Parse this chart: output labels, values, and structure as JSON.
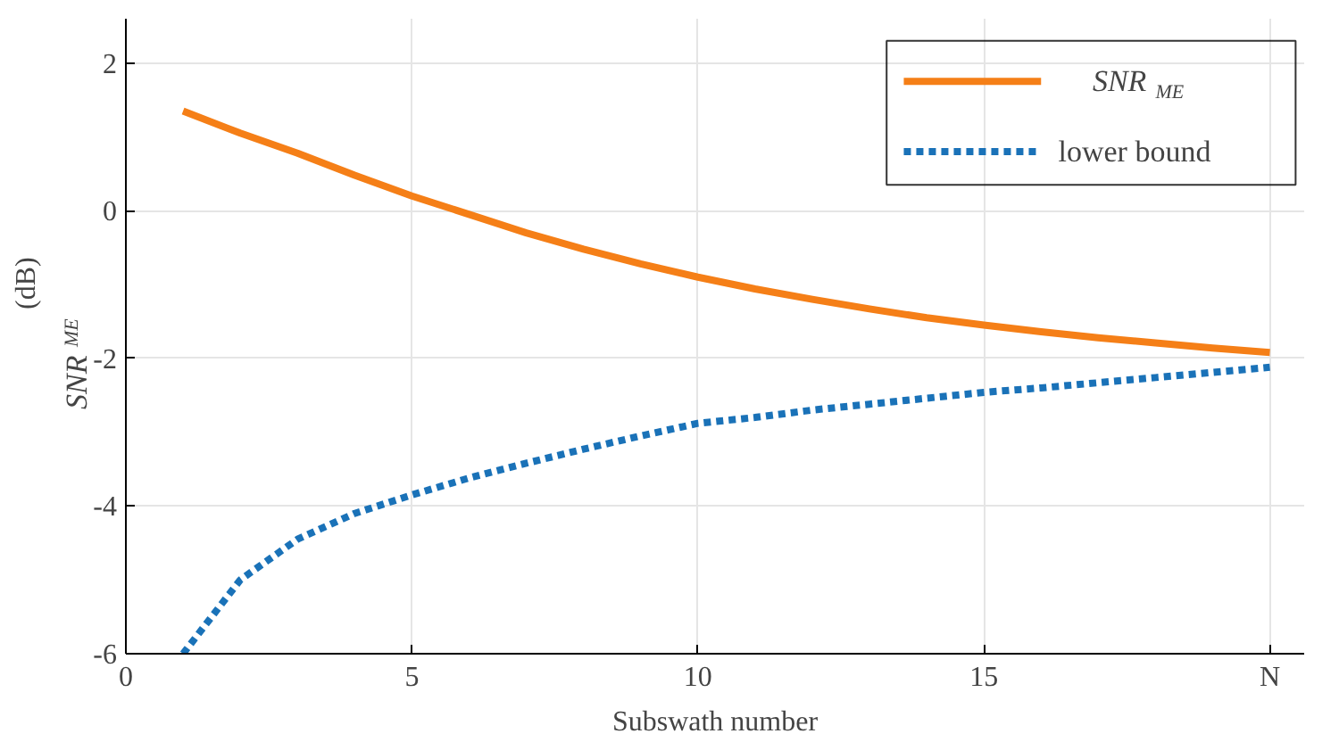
{
  "chart_data": {
    "type": "line",
    "xlabel": "Subswath number",
    "ylabel": "SNR$_{ME}$ (dB)",
    "x": [
      1,
      2,
      3,
      4,
      5,
      6,
      7,
      8,
      9,
      10,
      11,
      12,
      13,
      14,
      15,
      16,
      17,
      18,
      19,
      20
    ],
    "series": [
      {
        "name": "SNR$_{ME}$",
        "color": "#f57f17",
        "line_style": "solid",
        "values": [
          1.35,
          1.05,
          0.78,
          0.48,
          0.2,
          -0.05,
          -0.3,
          -0.52,
          -0.72,
          -0.9,
          -1.06,
          -1.2,
          -1.33,
          -1.45,
          -1.55,
          -1.64,
          -1.72,
          -1.79,
          -1.86,
          -1.92
        ]
      },
      {
        "name": "lower bound",
        "color": "#1a72b8",
        "line_style": "dashed",
        "values": [
          -6.0,
          -5.0,
          -4.45,
          -4.1,
          -3.85,
          -3.62,
          -3.42,
          -3.23,
          -3.05,
          -2.88,
          -2.8,
          -2.7,
          -2.62,
          -2.54,
          -2.46,
          -2.4,
          -2.33,
          -2.26,
          -2.19,
          -2.12
        ]
      }
    ],
    "xlim": [
      0,
      20.6
    ],
    "ylim": [
      -6,
      2.6
    ],
    "xticks": [
      0,
      5,
      10,
      15,
      {
        "value": 20,
        "label": "N"
      }
    ],
    "yticks": [
      -6,
      -4,
      -2,
      0,
      2
    ],
    "grid": true,
    "legend": "top right"
  }
}
